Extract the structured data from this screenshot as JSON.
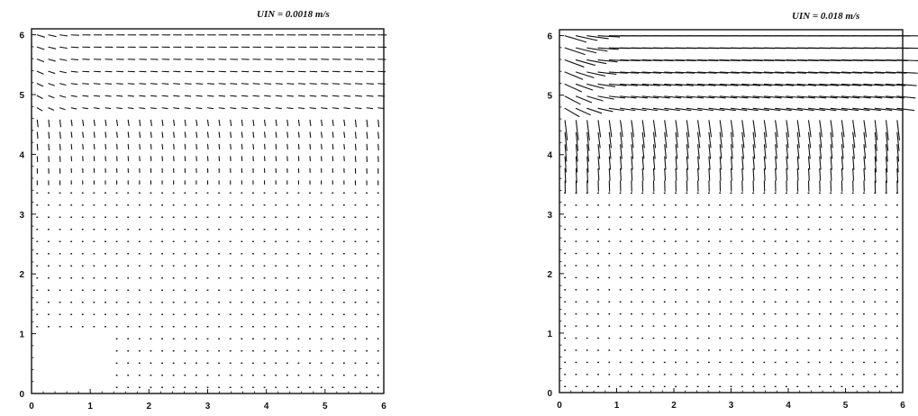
{
  "chart_data": [
    {
      "type": "vector-field",
      "title": "UIN = 0.0018 m/s",
      "xlabel": "",
      "ylabel": "",
      "xlim": [
        0,
        6
      ],
      "ylim": [
        0,
        6.1
      ],
      "xticks": [
        "0",
        "1",
        "2",
        "3",
        "4",
        "5",
        "6"
      ],
      "yticks": [
        "0",
        "1",
        "2",
        "3",
        "4",
        "5",
        "6"
      ],
      "grid": false,
      "inlet_height": 4.6,
      "jet_boundary_y": 3.5,
      "layer_top_y": 4.6,
      "inlet_speed_relative": 0.35,
      "empty_region": {
        "x": [
          0,
          1.3
        ],
        "y": [
          0,
          1.0
        ]
      }
    },
    {
      "type": "vector-field",
      "title": "UIN = 0.018 m/s",
      "xlabel": "",
      "ylabel": "",
      "xlim": [
        0,
        6
      ],
      "ylim": [
        0,
        6.1
      ],
      "xticks": [
        "0",
        "1",
        "2",
        "3",
        "4",
        "5",
        "6"
      ],
      "yticks": [
        "0",
        "1",
        "2",
        "3",
        "4",
        "5",
        "6"
      ],
      "grid": false,
      "inlet_height": 4.6,
      "jet_boundary_y": 3.4,
      "layer_top_y": 4.6,
      "inlet_speed_relative": 1.0,
      "empty_region": null
    }
  ]
}
